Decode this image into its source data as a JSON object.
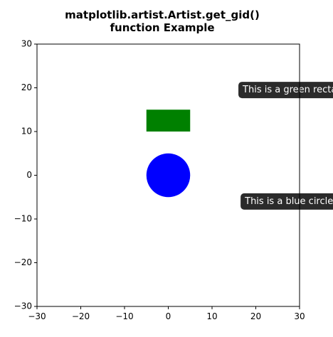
{
  "chart_data": {
    "type": "scatter",
    "title_lines": [
      "matplotlib.artist.Artist.get_gid()",
      "function Example"
    ],
    "xlabel": "",
    "ylabel": "",
    "xlim": [
      -30,
      30
    ],
    "ylim": [
      -30,
      30
    ],
    "xticks": [
      -30,
      -20,
      -10,
      0,
      10,
      20,
      30
    ],
    "yticks": [
      -30,
      -20,
      -10,
      0,
      10,
      20,
      30
    ],
    "xtick_labels": [
      "−30",
      "−20",
      "−10",
      "0",
      "10",
      "20",
      "30"
    ],
    "ytick_labels": [
      "−30",
      "−20",
      "−10",
      "0",
      "10",
      "20",
      "30"
    ],
    "grid": false,
    "shapes": [
      {
        "kind": "rectangle",
        "x": -5,
        "y": 10,
        "width": 10,
        "height": 5,
        "color": "#008000"
      },
      {
        "kind": "circle",
        "cx": 0,
        "cy": 0,
        "r": 5,
        "color": "#0000ff"
      }
    ],
    "annotations": [
      {
        "text": "This is a green rectangle.",
        "x": 17,
        "y": 19.5,
        "box_color": "#2b2b2b",
        "text_color": "#ffffff"
      },
      {
        "text": "This is a blue circle.",
        "x": 17.5,
        "y": -6,
        "box_color": "#2b2b2b",
        "text_color": "#ffffff"
      }
    ]
  }
}
